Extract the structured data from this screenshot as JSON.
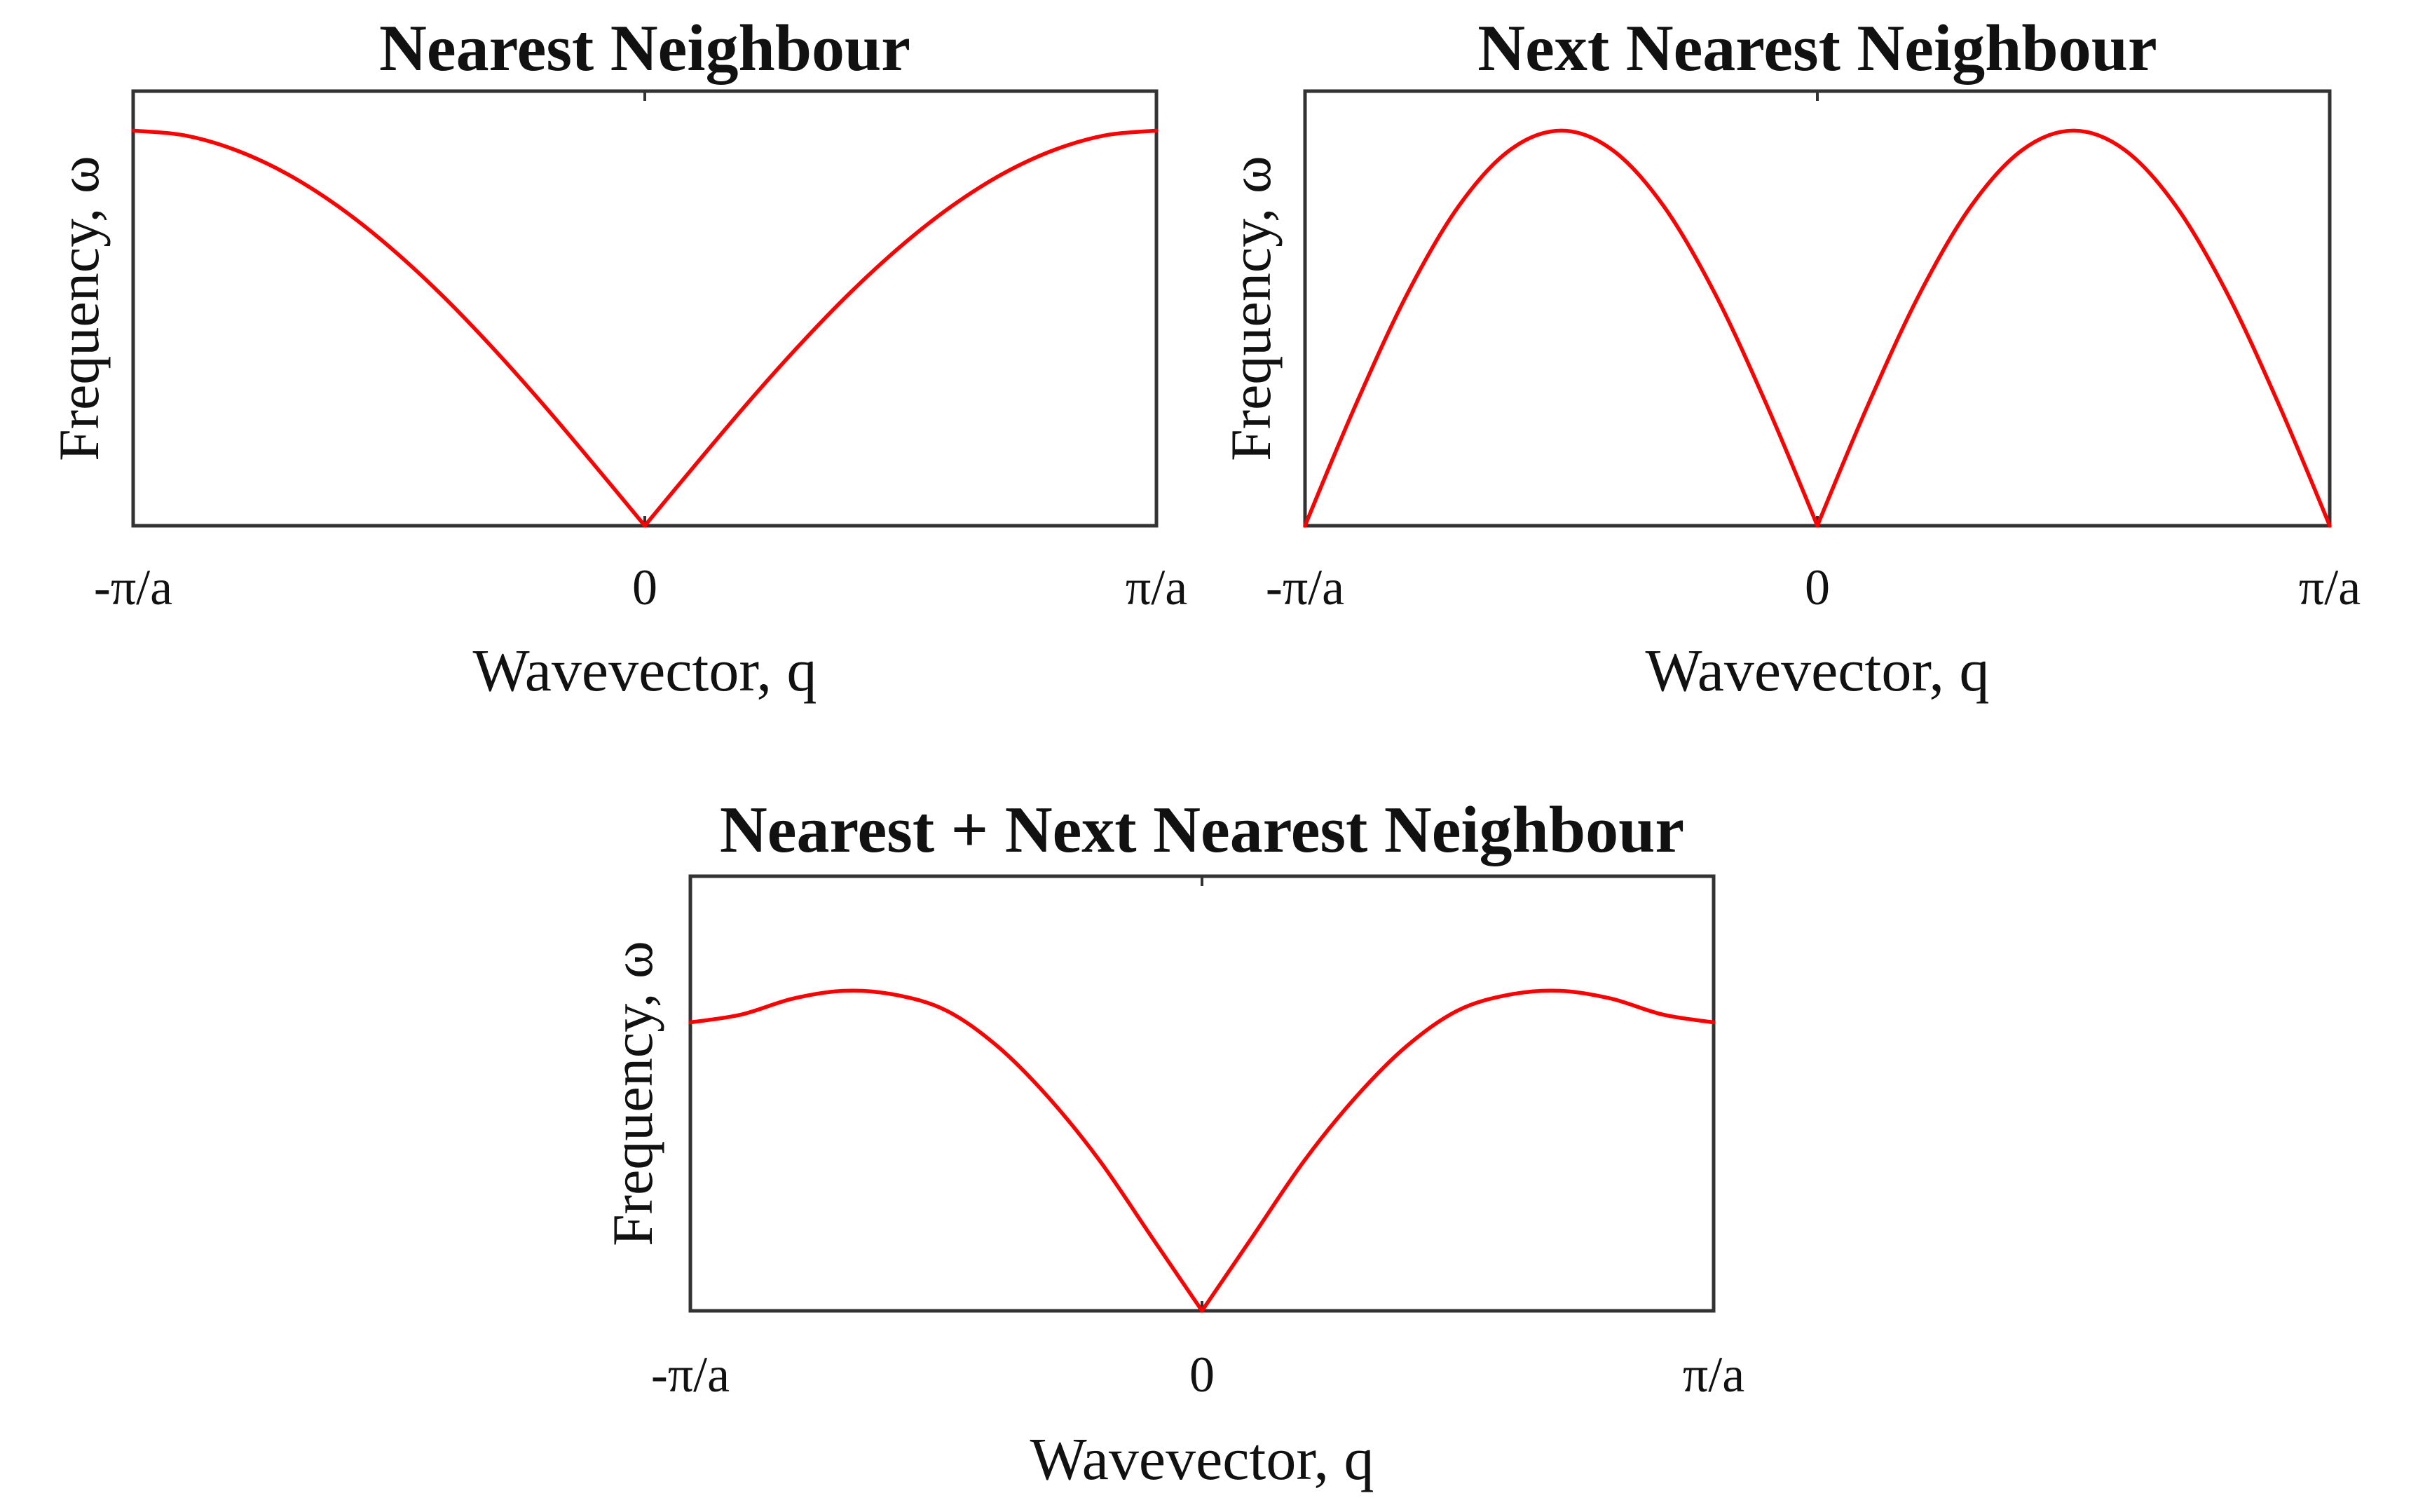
{
  "chart_data": [
    {
      "type": "line",
      "title": "Nearest Neighbour",
      "xlabel": "Wavevector, q",
      "ylabel": "Frequency, ω",
      "xticks": [
        "-π/a",
        "0",
        "π/a"
      ],
      "xlim": [
        -1,
        1
      ],
      "ylim": [
        0,
        1.1
      ],
      "grid": false,
      "x": [
        -1,
        -0.9,
        -0.8,
        -0.7,
        -0.6,
        -0.5,
        -0.4,
        -0.3,
        -0.2,
        -0.1,
        0,
        0.1,
        0.2,
        0.3,
        0.4,
        0.5,
        0.6,
        0.7,
        0.8,
        0.9,
        1
      ],
      "series": [
        {
          "color": "#ff0000",
          "y": [
            1.0,
            0.988,
            0.951,
            0.891,
            0.809,
            0.707,
            0.588,
            0.454,
            0.309,
            0.156,
            0,
            0.156,
            0.309,
            0.454,
            0.588,
            0.707,
            0.809,
            0.891,
            0.951,
            0.988,
            1.0
          ]
        }
      ]
    },
    {
      "type": "line",
      "title": "Next Nearest Neighbour",
      "xlabel": "Wavevector, q",
      "ylabel": "Frequency, ω",
      "xticks": [
        "-π/a",
        "0",
        "π/a"
      ],
      "xlim": [
        -1,
        1
      ],
      "ylim": [
        0,
        1.1
      ],
      "grid": false,
      "x": [
        -1,
        -0.9,
        -0.8,
        -0.7,
        -0.6,
        -0.5,
        -0.4,
        -0.3,
        -0.2,
        -0.1,
        0,
        0.1,
        0.2,
        0.3,
        0.4,
        0.5,
        0.6,
        0.7,
        0.8,
        0.9,
        1
      ],
      "series": [
        {
          "color": "#ff0000",
          "y": [
            0,
            0.309,
            0.588,
            0.809,
            0.951,
            1.0,
            0.951,
            0.809,
            0.588,
            0.309,
            0,
            0.309,
            0.588,
            0.809,
            0.951,
            1.0,
            0.951,
            0.809,
            0.588,
            0.309,
            0
          ]
        }
      ]
    },
    {
      "type": "line",
      "title": "Nearest + Next Nearest Neighbour",
      "xlabel": "Wavevector, q",
      "ylabel": "Frequency, ω",
      "xticks": [
        "-π/a",
        "0",
        "π/a"
      ],
      "xlim": [
        -1,
        1
      ],
      "ylim": [
        0,
        1.1
      ],
      "grid": false,
      "x": [
        -1,
        -0.9,
        -0.8,
        -0.7,
        -0.6,
        -0.5,
        -0.4,
        -0.3,
        -0.2,
        -0.1,
        0,
        0.1,
        0.2,
        0.3,
        0.4,
        0.5,
        0.6,
        0.7,
        0.8,
        0.9,
        1
      ],
      "series": [
        {
          "color": "#ff0000",
          "y": [
            0.73,
            0.75,
            0.79,
            0.81,
            0.8,
            0.76,
            0.67,
            0.54,
            0.38,
            0.19,
            0,
            0.19,
            0.38,
            0.54,
            0.67,
            0.76,
            0.8,
            0.81,
            0.79,
            0.75,
            0.73
          ]
        }
      ]
    }
  ]
}
